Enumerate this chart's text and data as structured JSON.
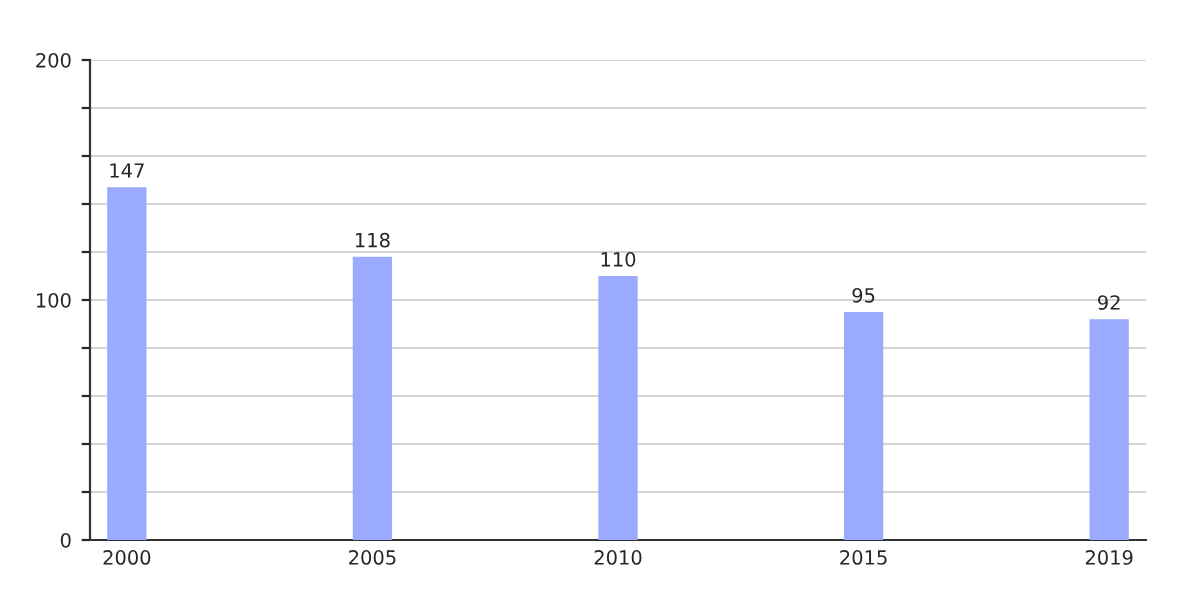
{
  "chart_data": {
    "type": "bar",
    "categories": [
      "2000",
      "2005",
      "2010",
      "2015",
      "2019"
    ],
    "values": [
      147,
      118,
      110,
      95,
      92
    ],
    "color": "#99aaff",
    "ylim": [
      0,
      200
    ],
    "yticks": [
      0,
      {
        "value": 20,
        "label": null
      },
      {
        "value": 40,
        "label": null
      },
      {
        "value": 60,
        "label": null
      },
      {
        "value": 80,
        "label": null
      },
      100,
      {
        "value": 120,
        "label": null
      },
      {
        "value": 140,
        "label": null
      },
      {
        "value": 160,
        "label": null
      },
      {
        "value": 180,
        "label": null
      },
      200
    ],
    "grid": "y",
    "data_labels": true
  }
}
